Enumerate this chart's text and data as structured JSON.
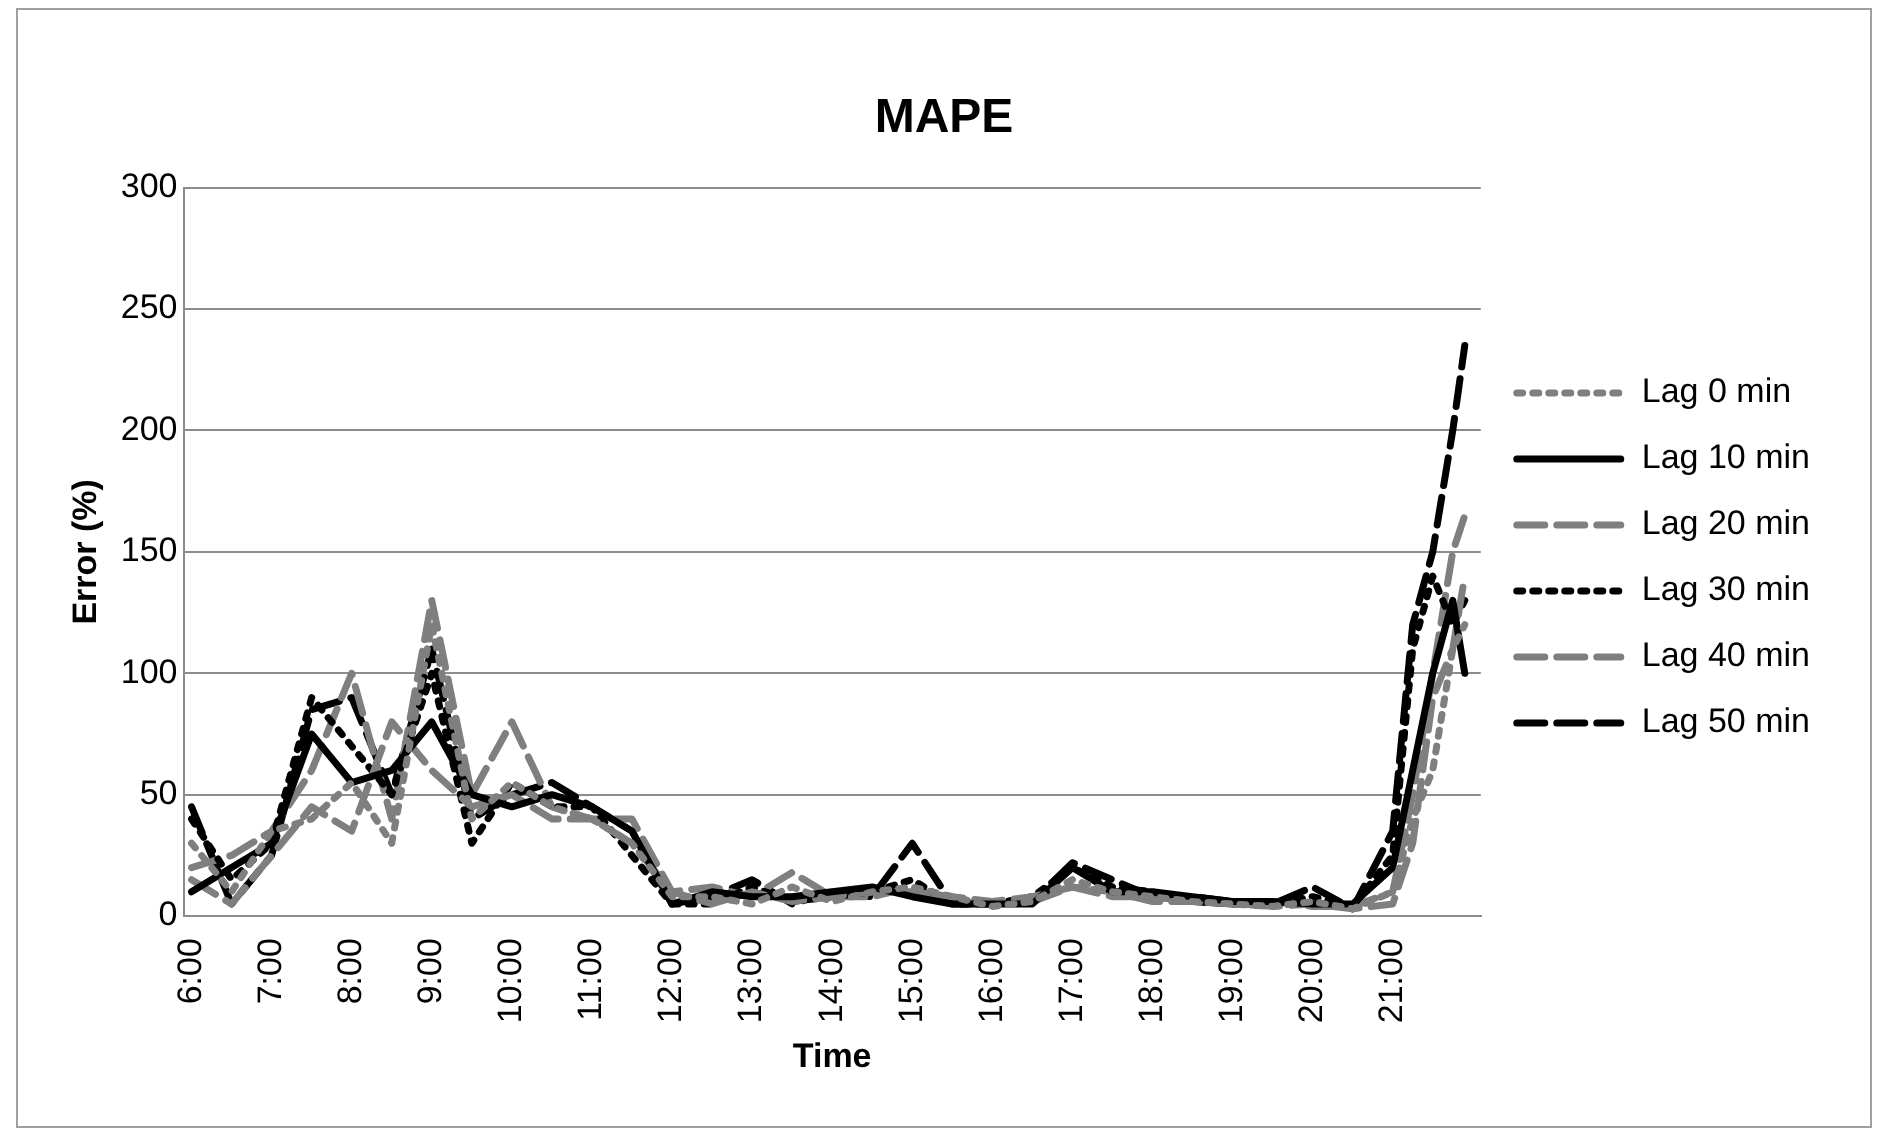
{
  "chart_data": {
    "type": "line",
    "title": "MAPE",
    "xlabel": "Time",
    "ylabel": "Error (%)",
    "x": [
      6.0,
      6.5,
      7.0,
      7.5,
      8.0,
      8.5,
      9.0,
      9.5,
      10.0,
      10.5,
      11.0,
      11.5,
      12.0,
      12.5,
      13.0,
      13.5,
      14.0,
      14.5,
      15.0,
      15.5,
      16.0,
      16.5,
      17.0,
      17.5,
      18.0,
      18.5,
      19.0,
      19.5,
      20.0,
      20.5,
      21.0,
      21.25,
      21.5,
      21.75,
      21.9
    ],
    "xlim": [
      5.9,
      22.1
    ],
    "xticks": [
      {
        "value": 6,
        "label": "6:00"
      },
      {
        "value": 7,
        "label": "7:00"
      },
      {
        "value": 8,
        "label": "8:00"
      },
      {
        "value": 9,
        "label": "9:00"
      },
      {
        "value": 10,
        "label": "10:00"
      },
      {
        "value": 11,
        "label": "11:00"
      },
      {
        "value": 12,
        "label": "12:00"
      },
      {
        "value": 13,
        "label": "13:00"
      },
      {
        "value": 14,
        "label": "14:00"
      },
      {
        "value": 15,
        "label": "15:00"
      },
      {
        "value": 16,
        "label": "16:00"
      },
      {
        "value": 17,
        "label": "17:00"
      },
      {
        "value": 18,
        "label": "18:00"
      },
      {
        "value": 19,
        "label": "19:00"
      },
      {
        "value": 20,
        "label": "20:00"
      },
      {
        "value": 21,
        "label": "21:00"
      }
    ],
    "ylim": [
      0,
      300
    ],
    "yticks": [
      0,
      50,
      100,
      150,
      200,
      250,
      300
    ],
    "grid": "y",
    "legend": "right",
    "marker": "none",
    "series": [
      {
        "name": "Lag 0 min",
        "color": "#7f7f7f",
        "line_style": "dotted",
        "values": [
          30,
          10,
          35,
          40,
          55,
          30,
          120,
          40,
          55,
          45,
          40,
          30,
          8,
          8,
          5,
          12,
          6,
          10,
          12,
          8,
          4,
          6,
          15,
          10,
          8,
          6,
          5,
          4,
          6,
          3,
          10,
          40,
          60,
          110,
          120
        ]
      },
      {
        "name": "Lag 10 min",
        "color": "#000000",
        "line_style": "solid",
        "values": [
          10,
          20,
          30,
          75,
          55,
          60,
          80,
          50,
          45,
          50,
          45,
          35,
          5,
          10,
          8,
          8,
          10,
          12,
          8,
          5,
          5,
          5,
          20,
          10,
          10,
          8,
          6,
          6,
          5,
          5,
          20,
          60,
          100,
          130,
          100
        ]
      },
      {
        "name": "Lag 20 min",
        "color": "#7f7f7f",
        "line_style": "dashed",
        "values": [
          15,
          5,
          25,
          45,
          35,
          80,
          60,
          45,
          50,
          40,
          40,
          30,
          10,
          5,
          10,
          6,
          8,
          10,
          10,
          8,
          6,
          8,
          12,
          10,
          6,
          6,
          5,
          4,
          5,
          3,
          5,
          30,
          90,
          110,
          140
        ]
      },
      {
        "name": "Lag 30 min",
        "color": "#000000",
        "line_style": "dotted",
        "values": [
          40,
          15,
          30,
          90,
          70,
          50,
          100,
          30,
          55,
          45,
          45,
          25,
          5,
          5,
          12,
          6,
          8,
          10,
          15,
          5,
          5,
          8,
          20,
          12,
          10,
          6,
          5,
          5,
          8,
          4,
          25,
          110,
          140,
          120,
          130
        ]
      },
      {
        "name": "Lag 40 min",
        "color": "#7f7f7f",
        "line_style": "dashed",
        "values": [
          20,
          25,
          35,
          60,
          100,
          40,
          130,
          50,
          80,
          45,
          40,
          40,
          10,
          12,
          8,
          18,
          8,
          8,
          12,
          6,
          5,
          6,
          12,
          8,
          8,
          6,
          5,
          6,
          4,
          4,
          10,
          50,
          100,
          150,
          165
        ]
      },
      {
        "name": "Lag 50 min",
        "color": "#000000",
        "line_style": "dashed",
        "values": [
          45,
          5,
          25,
          85,
          90,
          50,
          110,
          40,
          50,
          55,
          45,
          35,
          5,
          8,
          15,
          5,
          10,
          8,
          30,
          5,
          5,
          6,
          22,
          15,
          8,
          8,
          6,
          5,
          12,
          3,
          35,
          120,
          150,
          200,
          235
        ]
      }
    ]
  }
}
